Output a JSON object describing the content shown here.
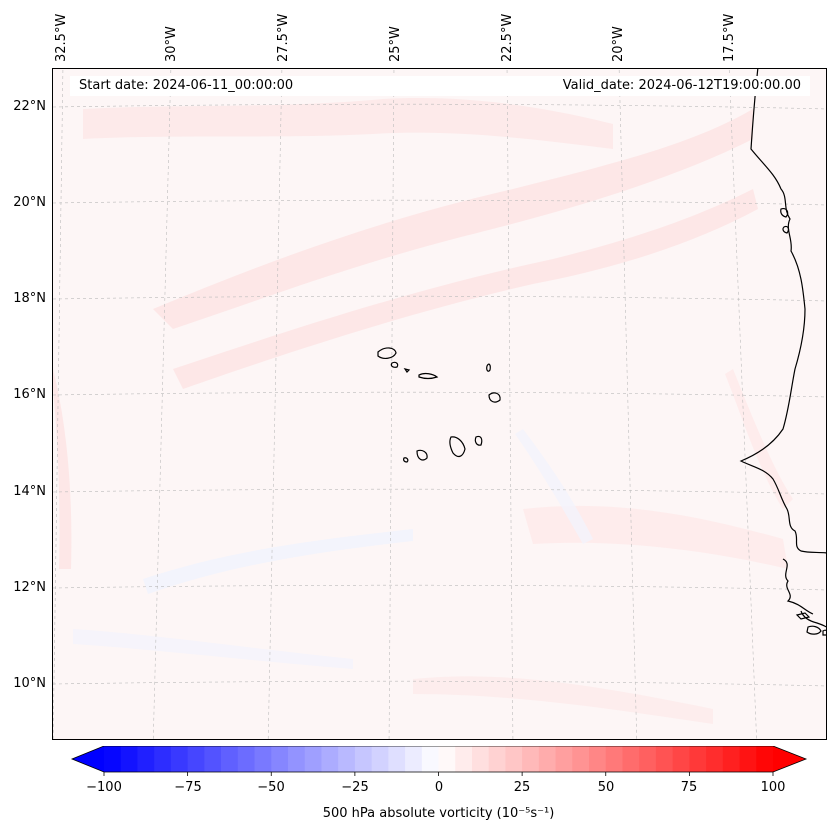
{
  "header": {
    "start_date": "Start date: 2024-06-11_00:00:00",
    "valid_date": "Valid_date: 2024-06-12T19:00:00.00"
  },
  "longitude_labels": [
    "32.5°W",
    "30°W",
    "27.5°W",
    "25°W",
    "22.5°W",
    "20°W",
    "17.5°W"
  ],
  "latitude_labels": [
    "22°N",
    "20°N",
    "18°N",
    "16°N",
    "14°N",
    "12°N",
    "10°N"
  ],
  "colorbar": {
    "min": -100,
    "max": 100,
    "ticks": [
      "−100",
      "−75",
      "−50",
      "−25",
      "0",
      "25",
      "50",
      "75",
      "100"
    ],
    "label": "500 hPa absolute vorticity (10⁻⁵s⁻¹)",
    "low_color": "#0000ff",
    "mid_color": "#ffffff",
    "high_color": "#ff0000"
  },
  "colors": {
    "background_field": "#fdf6f6",
    "positive_band": "#fde4e4",
    "negative_band": "#f2f4fd",
    "coastline": "#000000",
    "gridline": "#bbbbbb"
  }
}
